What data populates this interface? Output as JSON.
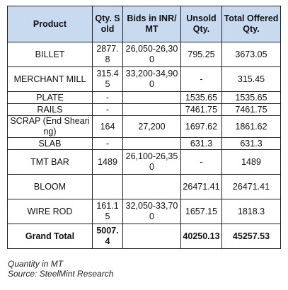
{
  "table": {
    "headers": {
      "product": "Product",
      "qty_sold": "Qty. Sold",
      "bids": "Bids in INR/MT",
      "unsold": "Unsold Qty.",
      "total_offered": "Total Offered Qty."
    },
    "rows": [
      {
        "product": "BILLET",
        "qty_sold": "2877.8",
        "bids": "26,050-26,300",
        "unsold": "795.25",
        "total": "3673.05"
      },
      {
        "product": "MERCHANT MILL",
        "qty_sold": "315.45",
        "bids": "33,200-34,900",
        "unsold": "-",
        "total": "315.45"
      },
      {
        "product": "PLATE",
        "qty_sold": "-",
        "bids": "",
        "unsold": "1535.65",
        "total": "1535.65"
      },
      {
        "product": "RAILS",
        "qty_sold": "-",
        "bids": "",
        "unsold": "7461.75",
        "total": "7461.75"
      },
      {
        "product": "SCRAP (End Shearing)",
        "qty_sold": "164",
        "bids": "27,200",
        "unsold": "1697.62",
        "total": "1861.62"
      },
      {
        "product": "SLAB",
        "qty_sold": "-",
        "bids": "",
        "unsold": "631.3",
        "total": "631.3"
      },
      {
        "product": "TMT BAR",
        "qty_sold": "1489",
        "bids": "26,100-26,350",
        "unsold": "-",
        "total": "1489"
      },
      {
        "product": "BLOOM",
        "qty_sold": "",
        "bids": "",
        "unsold": "26471.41",
        "total": "26471.41"
      },
      {
        "product": "WIRE ROD",
        "qty_sold": "161.15",
        "bids": "32,050-33,700",
        "unsold": "1657.15",
        "total": "1818.3"
      }
    ],
    "grand_total": {
      "label": "Grand Total",
      "qty_sold": "5007.4",
      "bids": "",
      "unsold": "40250.13",
      "total": "45257.53"
    }
  },
  "footer": {
    "note": "Quantity in MT",
    "source": "Source: SteelMint Research"
  }
}
